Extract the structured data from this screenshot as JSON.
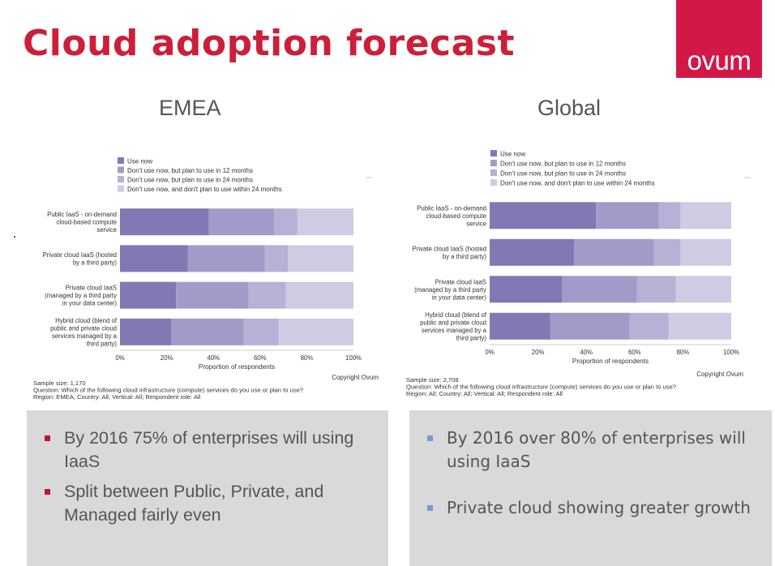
{
  "header": {
    "title": "Cloud adoption forecast",
    "logo": "ovum"
  },
  "colors": {
    "title": "#cc1f3a",
    "logo_bg": "#d21846",
    "series": [
      "#8278b4",
      "#a29bc9",
      "#b7b1d6",
      "#cfcbe3"
    ],
    "bullet_left": "#c0142c",
    "bullet_right": "#6f9ed0"
  },
  "chart_data": [
    {
      "type": "bar",
      "orientation": "horizontal",
      "stacked": true,
      "heading": "EMEA",
      "categories": [
        "Public IaaS - on-demand cloud-based compute service",
        "Private cloud IaaS (hosted by a third party)",
        "Private cloud IaaS (managed by a third party in your data center)",
        "Hybrid cloud (blend of public and private cloud services managed by a third party)"
      ],
      "category_lines": [
        [
          "Public IaaS - on-demand",
          "cloud-based compute",
          "service"
        ],
        [
          "Private cloud IaaS (hosted",
          "by a third party)"
        ],
        [
          "Private cloud IaaS",
          "(managed by a third party",
          "in your data center)"
        ],
        [
          "Hybrid cloud (blend of",
          "public and private cloud",
          "services managed by a",
          "third party)"
        ]
      ],
      "series": [
        {
          "name": "Use now",
          "values": [
            38,
            29,
            24,
            22
          ]
        },
        {
          "name": "Don't use now, but plan to use in 12 months",
          "values": [
            28,
            33,
            31,
            31
          ]
        },
        {
          "name": "Don't use now, but plan to use in 24 months",
          "values": [
            10,
            10,
            16,
            15
          ]
        },
        {
          "name": "Don't use now, and don't plan to use within 24 months",
          "values": [
            24,
            28,
            29,
            32
          ]
        }
      ],
      "xlabel": "Proportion of respondents",
      "xticks": [
        "0%",
        "20%",
        "40%",
        "60%",
        "80%",
        "100%"
      ],
      "xlim": [
        0,
        100
      ],
      "copyright": "Copyright Ovum",
      "sample": "Sample size: 1,170",
      "question": "Question: Which of the following cloud infrastructure (compute) services do you use or plan to use?",
      "region_line": "Region: EMEA; Country: All; Vertical: All; Respondent role: All",
      "legend_position": "top"
    },
    {
      "type": "bar",
      "orientation": "horizontal",
      "stacked": true,
      "heading": "Global",
      "categories": [
        "Public IaaS - on-demand cloud-based compute service",
        "Private cloud IaaS (hosted by a third party)",
        "Private cloud IaaS (managed by a third party in your data center)",
        "Hybrid cloud (blend of public and private cloud services managed by a third party)"
      ],
      "category_lines": [
        [
          "Public IaaS - on-demand",
          "cloud-based compute",
          "service"
        ],
        [
          "Private cloud IaaS (hosted",
          "by a third party)"
        ],
        [
          "Private cloud IaaS",
          "(managed by a third party",
          "in your data center)"
        ],
        [
          "Hybrid cloud (blend of",
          "public and private cloud",
          "services managed by a",
          "third party)"
        ]
      ],
      "series": [
        {
          "name": "Use now",
          "values": [
            44,
            35,
            30,
            25
          ]
        },
        {
          "name": "Don't use now, but plan to use in 12 months",
          "values": [
            26,
            33,
            31,
            33
          ]
        },
        {
          "name": "Don't use now, but plan to use in 24 months",
          "values": [
            9,
            11,
            16,
            16
          ]
        },
        {
          "name": "Don't use now, and don't plan to use within 24 months",
          "values": [
            21,
            21,
            23,
            26
          ]
        }
      ],
      "xlabel": "Proportion of respondents",
      "xticks": [
        "0%",
        "20%",
        "40%",
        "60%",
        "80%",
        "100%"
      ],
      "xlim": [
        0,
        100
      ],
      "copyright": "Copyright Ovum",
      "sample": "Sample size: 2,708",
      "question": "Question: Which of the following cloud infrastructure (compute) services do you use or plan to use?",
      "region_line": "Region: All; Country: All; Vertical: All; Respondent role: All",
      "legend_position": "top"
    }
  ],
  "bullets": {
    "left": [
      "By 2016 75% of enterprises will using IaaS",
      "Split between Public, Private, and Managed fairly even"
    ],
    "right": [
      "By 2016 over 80% of enterprises will using IaaS",
      "Private cloud showing greater growth"
    ]
  }
}
